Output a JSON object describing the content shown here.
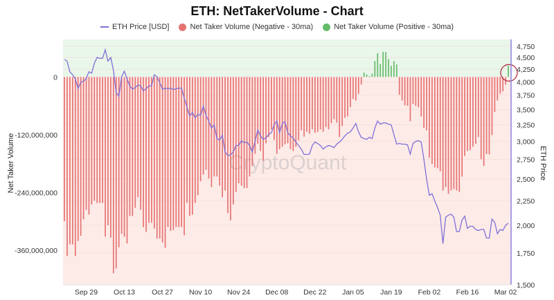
{
  "chart_data": {
    "type": "bar",
    "title": "ETH: NetTakerVolume - Chart",
    "legend": {
      "placement": "top",
      "entries": [
        "ETH Price [USD]",
        "Net Taker Volume (Negative - 30ma)",
        "Net Taker Volume (Positive - 30ma)"
      ]
    },
    "ylabel_left": "Net Taker Volume",
    "ylabel_right": "ETH Price",
    "watermark": "CryptoQuant",
    "ylim_left": [
      -432000000,
      78000000
    ],
    "ylim_right": [
      1500,
      4910
    ],
    "right_axis_scale": "log",
    "grid": true,
    "colors": {
      "price_line": "#7e6fd8",
      "negative": "#e57373",
      "positive": "#66bb6a",
      "bg_positive": "#e9f6ea",
      "bg_negative": "#fdebe8",
      "annotation_circle": "#b0303f"
    },
    "annotation": "circle around the last positive bar",
    "x_ticks": [
      "Sep 29",
      "Oct 13",
      "Oct 27",
      "Nov 10",
      "Nov 24",
      "Dec 08",
      "Dec 22",
      "Jan 05",
      "Jan 19",
      "Feb 02",
      "Feb 16",
      "Mar 02"
    ],
    "y_ticks_left": [
      {
        "value": 0,
        "label": "0"
      },
      {
        "value": -120000000,
        "label": "-120,000,000"
      },
      {
        "value": -240000000,
        "label": "-240,000,000"
      },
      {
        "value": -360000000,
        "label": "-360,000,000"
      }
    ],
    "y_ticks_right": [
      {
        "value": 1500,
        "label": "1,500"
      },
      {
        "value": 1750,
        "label": "1,750"
      },
      {
        "value": 2000,
        "label": "2,000"
      },
      {
        "value": 2250,
        "label": "2,250"
      },
      {
        "value": 2500,
        "label": "2,500"
      },
      {
        "value": 2750,
        "label": "2,750"
      },
      {
        "value": 3000,
        "label": "3,000"
      },
      {
        "value": 3250,
        "label": "3,250"
      },
      {
        "value": 3500,
        "label": "3,500"
      },
      {
        "value": 3750,
        "label": "3,750"
      },
      {
        "value": 4000,
        "label": "4,000"
      },
      {
        "value": 4250,
        "label": "4,250"
      },
      {
        "value": 4500,
        "label": "4,500"
      },
      {
        "value": 4750,
        "label": "4,750"
      }
    ],
    "x": [
      "Sep 21",
      "Sep 22",
      "Sep 23",
      "Sep 24",
      "Sep 25",
      "Sep 26",
      "Sep 27",
      "Sep 28",
      "Sep 29",
      "Sep 30",
      "Oct 01",
      "Oct 02",
      "Oct 03",
      "Oct 04",
      "Oct 05",
      "Oct 06",
      "Oct 07",
      "Oct 08",
      "Oct 09",
      "Oct 10",
      "Oct 11",
      "Oct 12",
      "Oct 13",
      "Oct 14",
      "Oct 15",
      "Oct 16",
      "Oct 17",
      "Oct 18",
      "Oct 19",
      "Oct 20",
      "Oct 21",
      "Oct 22",
      "Oct 23",
      "Oct 24",
      "Oct 25",
      "Oct 26",
      "Oct 27",
      "Oct 28",
      "Oct 29",
      "Oct 30",
      "Oct 31",
      "Nov 01",
      "Nov 02",
      "Nov 03",
      "Nov 04",
      "Nov 05",
      "Nov 06",
      "Nov 07",
      "Nov 08",
      "Nov 09",
      "Nov 10",
      "Nov 11",
      "Nov 12",
      "Nov 13",
      "Nov 14",
      "Nov 15",
      "Nov 16",
      "Nov 17",
      "Nov 18",
      "Nov 19",
      "Nov 20",
      "Nov 21",
      "Nov 22",
      "Nov 23",
      "Nov 24",
      "Nov 25",
      "Nov 26",
      "Nov 27",
      "Nov 28",
      "Nov 29",
      "Nov 30",
      "Dec 01",
      "Dec 02",
      "Dec 03",
      "Dec 04",
      "Dec 05",
      "Dec 06",
      "Dec 07",
      "Dec 08",
      "Dec 09",
      "Dec 10",
      "Dec 11",
      "Dec 12",
      "Dec 13",
      "Dec 14",
      "Dec 15",
      "Dec 16",
      "Dec 17",
      "Dec 18",
      "Dec 19",
      "Dec 20",
      "Dec 21",
      "Dec 22",
      "Dec 23",
      "Dec 24",
      "Dec 25",
      "Dec 26",
      "Dec 27",
      "Dec 28",
      "Dec 29",
      "Dec 30",
      "Dec 31",
      "Jan 01",
      "Jan 02",
      "Jan 03",
      "Jan 04",
      "Jan 05",
      "Jan 06",
      "Jan 07",
      "Jan 08",
      "Jan 09",
      "Jan 10",
      "Jan 11",
      "Jan 12",
      "Jan 13",
      "Jan 14",
      "Jan 15",
      "Jan 16",
      "Jan 17",
      "Jan 18",
      "Jan 19",
      "Jan 20",
      "Jan 21",
      "Jan 22",
      "Jan 23",
      "Jan 24",
      "Jan 25",
      "Jan 26",
      "Jan 27",
      "Jan 28",
      "Jan 29",
      "Jan 30",
      "Jan 31",
      "Feb 01",
      "Feb 02",
      "Feb 03",
      "Feb 04",
      "Feb 05",
      "Feb 06",
      "Feb 07",
      "Feb 08",
      "Feb 09",
      "Feb 10",
      "Feb 11",
      "Feb 12",
      "Feb 13",
      "Feb 14",
      "Feb 15",
      "Feb 16",
      "Feb 17",
      "Feb 18",
      "Feb 19",
      "Feb 20",
      "Feb 21",
      "Feb 22",
      "Feb 23",
      "Feb 24",
      "Feb 25",
      "Feb 26",
      "Feb 27",
      "Feb 28",
      "Mar 01",
      "Mar 02",
      "Mar 03"
    ],
    "series": [
      {
        "name": "Net Taker Volume",
        "axis": "left",
        "type": "bar",
        "values": [
          -300000000,
          -372000000,
          -348000000,
          -348000000,
          -372000000,
          -341000000,
          -330000000,
          -296000000,
          -276000000,
          -286000000,
          -265000000,
          -257000000,
          -262000000,
          -262000000,
          -262000000,
          -332000000,
          -308000000,
          -334000000,
          -408000000,
          -398000000,
          -354000000,
          -326000000,
          -332000000,
          -346000000,
          -289000000,
          -289000000,
          -272000000,
          -250000000,
          -276000000,
          -312000000,
          -322000000,
          -303000000,
          -303000000,
          -315000000,
          -336000000,
          -336000000,
          -344000000,
          -355000000,
          -312000000,
          -320000000,
          -318000000,
          -312000000,
          -312000000,
          -312000000,
          -329000000,
          -262000000,
          -289000000,
          -286000000,
          -262000000,
          -246000000,
          -217000000,
          -203000000,
          -193000000,
          -211000000,
          -229000000,
          -207000000,
          -207000000,
          -226000000,
          -250000000,
          -236000000,
          -283000000,
          -298000000,
          -265000000,
          -239000000,
          -221000000,
          -226000000,
          -231000000,
          -231000000,
          -207000000,
          -185000000,
          -160000000,
          -139000000,
          -154000000,
          -174000000,
          -138000000,
          -125000000,
          -109000000,
          -131000000,
          -160000000,
          -150000000,
          -145000000,
          -140000000,
          -138000000,
          -150000000,
          -154000000,
          -145000000,
          -132000000,
          -111000000,
          -124000000,
          -114000000,
          -118000000,
          -109000000,
          -116000000,
          -114000000,
          -109000000,
          -114000000,
          -104000000,
          -109000000,
          -96000000,
          -88000000,
          -95000000,
          -125000000,
          -102000000,
          -85000000,
          -82000000,
          -63000000,
          -46000000,
          -49000000,
          -35000000,
          -16000000,
          9000000,
          5000000,
          2000000,
          7000000,
          33000000,
          49000000,
          27000000,
          52000000,
          52000000,
          37000000,
          23000000,
          33000000,
          26000000,
          -37000000,
          -49000000,
          -59000000,
          -60000000,
          -92000000,
          -56000000,
          -60000000,
          -63000000,
          -82000000,
          -106000000,
          -111000000,
          -168000000,
          -181000000,
          -188000000,
          -190000000,
          -196000000,
          -236000000,
          -229000000,
          -243000000,
          -236000000,
          -233000000,
          -236000000,
          -239000000,
          -207000000,
          -164000000,
          -154000000,
          -152000000,
          -145000000,
          -139000000,
          -125000000,
          -171000000,
          -185000000,
          -160000000,
          -161000000,
          -121000000,
          -73000000,
          -49000000,
          -35000000,
          -30000000,
          -16000000,
          23000000
        ]
      },
      {
        "name": "ETH Price [USD]",
        "axis": "right",
        "type": "line",
        "values": [
          4456,
          4420,
          4200,
          4140,
          4060,
          3870,
          3990,
          4010,
          4060,
          4200,
          4170,
          4380,
          4500,
          4480,
          4480,
          4670,
          4420,
          4500,
          4230,
          3800,
          3730,
          4100,
          4210,
          4060,
          3920,
          3860,
          3890,
          3940,
          3920,
          3830,
          3870,
          3920,
          3920,
          4140,
          4100,
          3990,
          3860,
          3880,
          3870,
          3880,
          3850,
          3870,
          3880,
          3880,
          3700,
          3540,
          3390,
          3450,
          3360,
          3420,
          3400,
          3560,
          3400,
          3310,
          3200,
          3250,
          3040,
          3020,
          3090,
          2850,
          2800,
          2810,
          2850,
          2940,
          2940,
          3010,
          2980,
          2990,
          2940,
          2850,
          3000,
          3170,
          3080,
          3030,
          3050,
          3100,
          3130,
          3250,
          3310,
          3130,
          3270,
          3300,
          3130,
          3080,
          3050,
          2990,
          2940,
          2890,
          2815,
          2815,
          2820,
          2940,
          2990,
          2970,
          2940,
          2890,
          2920,
          2940,
          2930,
          2910,
          2960,
          2990,
          3030,
          3080,
          3120,
          3140,
          3200,
          3270,
          3140,
          3060,
          3040,
          3030,
          3060,
          3040,
          3200,
          3310,
          3260,
          3280,
          3280,
          3260,
          3250,
          3100,
          2960,
          2970,
          2960,
          2960,
          2950,
          2820,
          2970,
          3000,
          3010,
          2990,
          2750,
          2500,
          2310,
          2330,
          2250,
          2180,
          2100,
          1830,
          2080,
          2100,
          2110,
          2080,
          1940,
          1940,
          2050,
          2090,
          1970,
          1990,
          1990,
          1960,
          1950,
          1960,
          1960,
          1880,
          1880,
          2060,
          2030,
          1920,
          1960,
          1950,
          2000,
          2020
        ]
      }
    ]
  }
}
